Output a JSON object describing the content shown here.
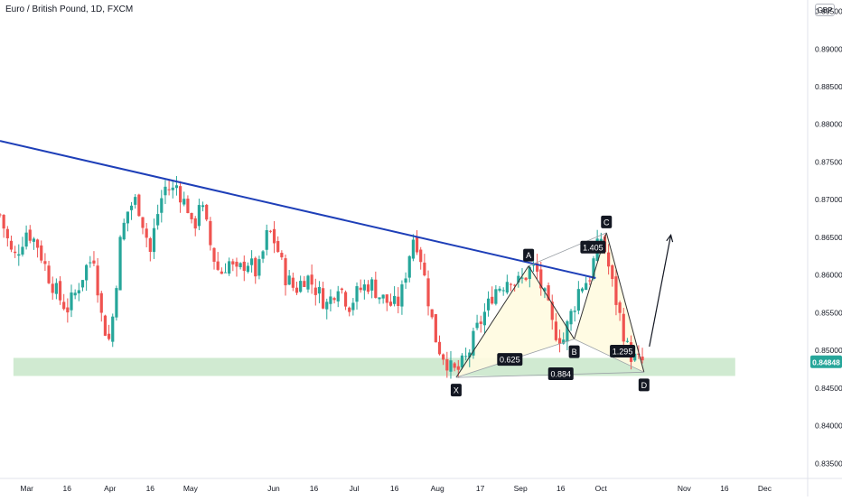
{
  "header": {
    "title": "Euro / British Pound, 1D, FXCM",
    "currency": "GBP"
  },
  "colors": {
    "up": "#26a69a",
    "down": "#ef5350",
    "trendline": "#1e3fb8",
    "zone": "#c8e6c9",
    "pattern_fill": "#fffbe0",
    "price_tag": "#26a69a"
  },
  "chart_data": {
    "type": "candlestick",
    "symbol": "EUR/GBP",
    "timeframe": "1D",
    "y_ticks": [
      "0.89500",
      "0.89000",
      "0.88500",
      "0.88000",
      "0.87500",
      "0.87000",
      "0.86500",
      "0.86000",
      "0.85500",
      "0.85000",
      "0.84500",
      "0.84000",
      "0.83500"
    ],
    "y_tick_values": [
      0.895,
      0.89,
      0.885,
      0.88,
      0.875,
      0.87,
      0.865,
      0.86,
      0.855,
      0.85,
      0.845,
      0.84,
      0.835
    ],
    "ylim": [
      0.833,
      0.8965
    ],
    "x_ticks": [
      {
        "label": "Mar",
        "day": 0
      },
      {
        "label": "16",
        "day": 15
      },
      {
        "label": "Apr",
        "day": 31
      },
      {
        "label": "16",
        "day": 46
      },
      {
        "label": "May",
        "day": 61
      },
      {
        "label": "Jun",
        "day": 92
      },
      {
        "label": "16",
        "day": 107
      },
      {
        "label": "Jul",
        "day": 122
      },
      {
        "label": "16",
        "day": 137
      },
      {
        "label": "Aug",
        "day": 153
      },
      {
        "label": "17",
        "day": 169
      },
      {
        "label": "Sep",
        "day": 184
      },
      {
        "label": "16",
        "day": 199
      },
      {
        "label": "Oct",
        "day": 214
      },
      {
        "label": "Nov",
        "day": 245
      },
      {
        "label": "16",
        "day": 260
      },
      {
        "label": "Dec",
        "day": 275
      }
    ],
    "xlim_days": [
      -10,
      291
    ],
    "last_price": "0.84848",
    "last_price_value": 0.84848,
    "close_path": [
      [
        -10,
        0.868
      ],
      [
        -5,
        0.862
      ],
      [
        0,
        0.866
      ],
      [
        4,
        0.864
      ],
      [
        8,
        0.86
      ],
      [
        12,
        0.857
      ],
      [
        15,
        0.8555
      ],
      [
        18,
        0.8575
      ],
      [
        22,
        0.861
      ],
      [
        25,
        0.8625
      ],
      [
        28,
        0.854
      ],
      [
        31,
        0.851
      ],
      [
        33,
        0.858
      ],
      [
        35,
        0.865
      ],
      [
        38,
        0.869
      ],
      [
        41,
        0.87
      ],
      [
        44,
        0.866
      ],
      [
        46,
        0.863
      ],
      [
        48,
        0.867
      ],
      [
        50,
        0.87
      ],
      [
        52,
        0.872
      ],
      [
        54,
        0.871
      ],
      [
        56,
        0.872
      ],
      [
        58,
        0.87
      ],
      [
        60,
        0.869
      ],
      [
        62,
        0.865
      ],
      [
        64,
        0.87
      ],
      [
        66,
        0.868
      ],
      [
        69,
        0.863
      ],
      [
        72,
        0.86
      ],
      [
        75,
        0.862
      ],
      [
        78,
        0.86
      ],
      [
        82,
        0.862
      ],
      [
        86,
        0.86
      ],
      [
        90,
        0.866
      ],
      [
        93,
        0.864
      ],
      [
        96,
        0.86
      ],
      [
        100,
        0.858
      ],
      [
        104,
        0.86
      ],
      [
        108,
        0.858
      ],
      [
        112,
        0.856
      ],
      [
        116,
        0.859
      ],
      [
        120,
        0.856
      ],
      [
        124,
        0.858
      ],
      [
        128,
        0.859
      ],
      [
        132,
        0.857
      ],
      [
        136,
        0.856
      ],
      [
        138,
        0.856
      ],
      [
        140,
        0.858
      ],
      [
        142,
        0.862
      ],
      [
        144,
        0.865
      ],
      [
        146,
        0.864
      ],
      [
        148,
        0.86
      ],
      [
        150,
        0.856
      ],
      [
        152,
        0.852
      ],
      [
        154,
        0.85
      ],
      [
        156,
        0.849
      ],
      [
        158,
        0.8475
      ],
      [
        160,
        0.847
      ],
      [
        162,
        0.848
      ],
      [
        164,
        0.849
      ],
      [
        166,
        0.851
      ],
      [
        168,
        0.853
      ],
      [
        170,
        0.8545
      ],
      [
        172,
        0.856
      ],
      [
        174,
        0.858
      ],
      [
        176,
        0.8585
      ],
      [
        178,
        0.859
      ],
      [
        180,
        0.86
      ],
      [
        182,
        0.859
      ],
      [
        184,
        0.859
      ],
      [
        186,
        0.86
      ],
      [
        188,
        0.861
      ],
      [
        190,
        0.8605
      ],
      [
        192,
        0.858
      ],
      [
        194,
        0.856
      ],
      [
        196,
        0.853
      ],
      [
        198,
        0.852
      ],
      [
        200,
        0.8515
      ],
      [
        202,
        0.854
      ],
      [
        204,
        0.856
      ],
      [
        206,
        0.8585
      ],
      [
        208,
        0.859
      ],
      [
        210,
        0.86
      ],
      [
        212,
        0.863
      ],
      [
        214,
        0.865
      ],
      [
        216,
        0.8625
      ],
      [
        218,
        0.859
      ],
      [
        220,
        0.856
      ],
      [
        222,
        0.853
      ],
      [
        224,
        0.85
      ],
      [
        226,
        0.849
      ],
      [
        228,
        0.8485
      ],
      [
        230,
        0.8485
      ]
    ],
    "support_zone": {
      "from": 0.8466,
      "to": 0.849,
      "day_start": -5,
      "day_end": 264
    },
    "trendline": {
      "start": [
        -10,
        0.8778
      ],
      "end": [
        212,
        0.8596
      ]
    },
    "harmonic_pattern": {
      "points": [
        {
          "label": "X",
          "day": 160,
          "price": 0.8464
        },
        {
          "label": "A",
          "day": 187,
          "price": 0.8612
        },
        {
          "label": "B",
          "day": 204,
          "price": 0.8515
        },
        {
          "label": "C",
          "day": 216,
          "price": 0.8656
        },
        {
          "label": "D",
          "day": 230,
          "price": 0.8471
        }
      ],
      "ratios": [
        {
          "label": "0.625",
          "day": 180,
          "price": 0.8488
        },
        {
          "label": "1.405",
          "day": 211,
          "price": 0.8637
        },
        {
          "label": "1.295",
          "day": 222,
          "price": 0.8499
        },
        {
          "label": "0.884",
          "day": 199,
          "price": 0.8469
        }
      ]
    },
    "projection_arrow": {
      "start": [
        232,
        0.8505
      ],
      "end": [
        240,
        0.8653
      ]
    }
  }
}
